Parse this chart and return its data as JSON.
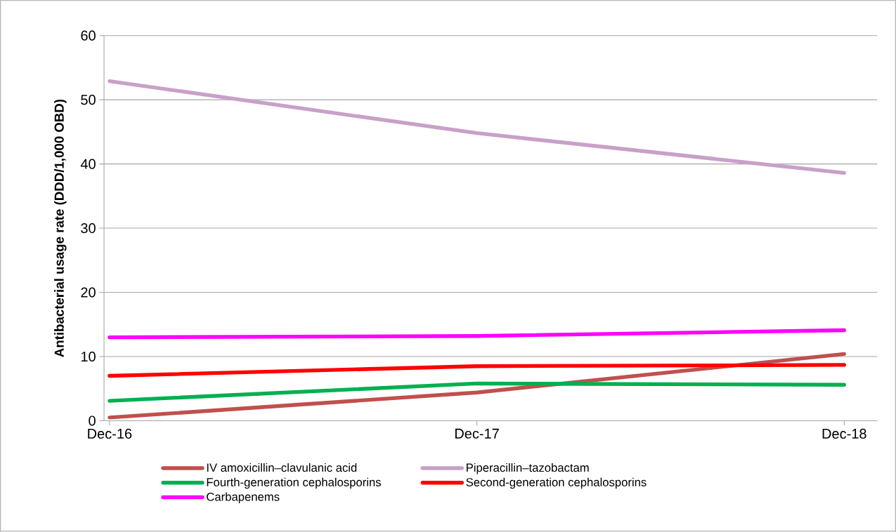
{
  "chart_data": {
    "type": "line",
    "ylabel": "Antibacterial usage rate (DDD/1,000 OBD)",
    "categories": [
      "Dec-16",
      "Dec-17",
      "Dec-18"
    ],
    "series": [
      {
        "name": "IV amoxicillin–clavulanic acid",
        "color": "#c0504d",
        "values": [
          0.5,
          4.4,
          10.4
        ]
      },
      {
        "name": "Piperacillin–tazobactam",
        "color": "#c8a0c8",
        "values": [
          52.9,
          44.8,
          38.6
        ]
      },
      {
        "name": "Fourth-generation cephalosporins",
        "color": "#00b050",
        "values": [
          3.1,
          5.8,
          5.6
        ]
      },
      {
        "name": "Second-generation cephalosporins",
        "color": "#ff0000",
        "values": [
          7.0,
          8.5,
          8.7
        ]
      },
      {
        "name": "Carbapenems",
        "color": "#ff00ff",
        "values": [
          13.0,
          13.2,
          14.1
        ]
      }
    ],
    "ylim": [
      0,
      60
    ],
    "yticks": [
      0,
      10,
      20,
      30,
      40,
      50,
      60
    ],
    "grid": "y",
    "legend": "bottom",
    "marker": "none",
    "line_style": "solid"
  }
}
